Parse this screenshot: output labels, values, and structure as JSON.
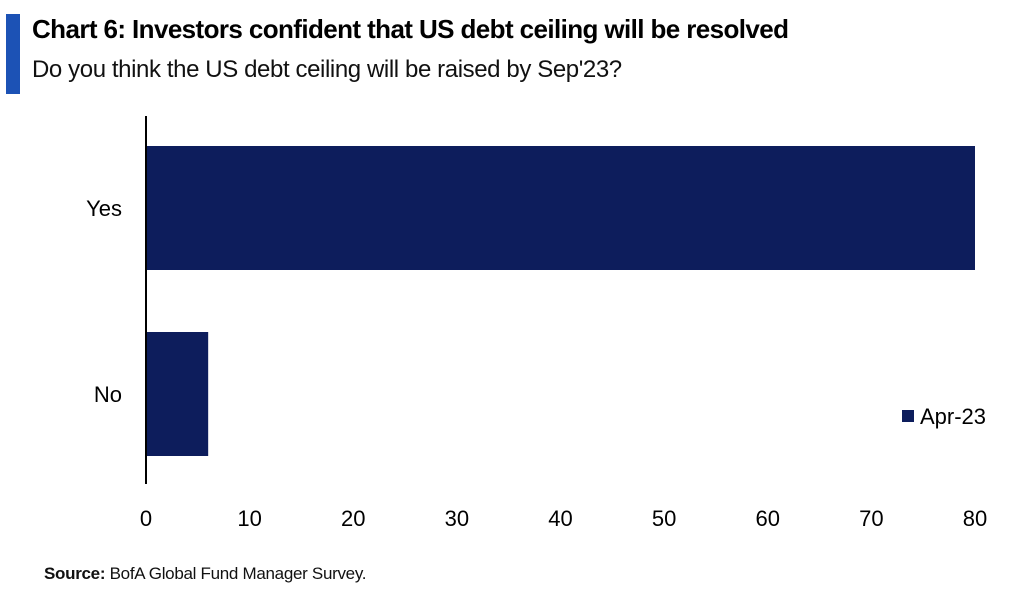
{
  "colors": {
    "accent": "#1c52b5",
    "series": "#0d1d5c",
    "axis": "#000000"
  },
  "header": {
    "title": "Chart 6: Investors confident that US debt ceiling will be resolved",
    "subtitle": "Do you think the US debt ceiling will be raised by Sep'23?"
  },
  "footer": {
    "source_label": "Source:",
    "source_text": " BofA Global Fund Manager Survey."
  },
  "chart_data": {
    "type": "bar",
    "orientation": "horizontal",
    "categories": [
      "Yes",
      "No"
    ],
    "series": [
      {
        "name": "Apr-23",
        "values": [
          80,
          6
        ]
      }
    ],
    "xlim": [
      0,
      80
    ],
    "x_ticks": [
      0,
      10,
      20,
      30,
      40,
      50,
      60,
      70,
      80
    ],
    "grid": false,
    "legend_position": "bottom-right"
  }
}
